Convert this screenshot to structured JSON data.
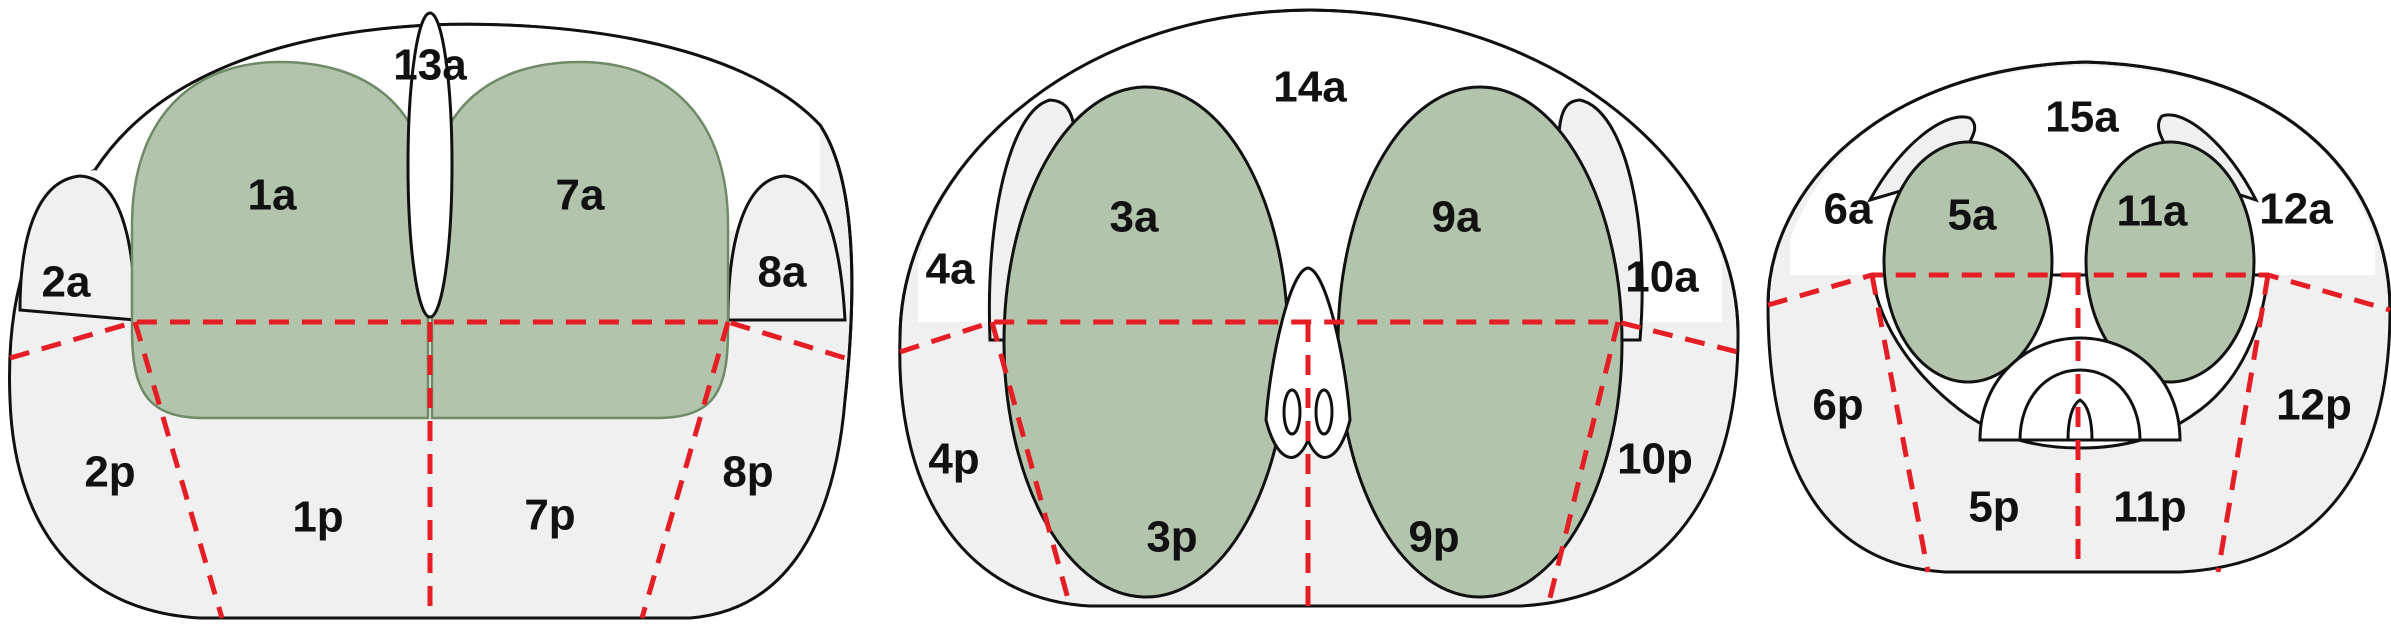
{
  "colors": {
    "background": "#ffffff",
    "peripheral_zone": "#f0f0f0",
    "transition_zone": "#b3c4ad",
    "transition_border": "#6f8a66",
    "anterior_stroma": "#ffffff",
    "outline": "#111111",
    "divider": "#e41e24"
  },
  "base": {
    "labels": {
      "z13a": "13a",
      "z1a": "1a",
      "z7a": "7a",
      "z2a": "2a",
      "z8a": "8a",
      "z2p": "2p",
      "z1p": "1p",
      "z7p": "7p",
      "z8p": "8p"
    }
  },
  "mid": {
    "labels": {
      "z14a": "14a",
      "z3a": "3a",
      "z9a": "9a",
      "z4a": "4a",
      "z10a": "10a",
      "z4p": "4p",
      "z3p": "3p",
      "z9p": "9p",
      "z10p": "10p"
    }
  },
  "apex": {
    "labels": {
      "z15a": "15a",
      "z6a": "6a",
      "z5a": "5a",
      "z11a": "11a",
      "z12a": "12a",
      "z6p": "6p",
      "z5p": "5p",
      "z11p": "11p",
      "z12p": "12p"
    }
  }
}
